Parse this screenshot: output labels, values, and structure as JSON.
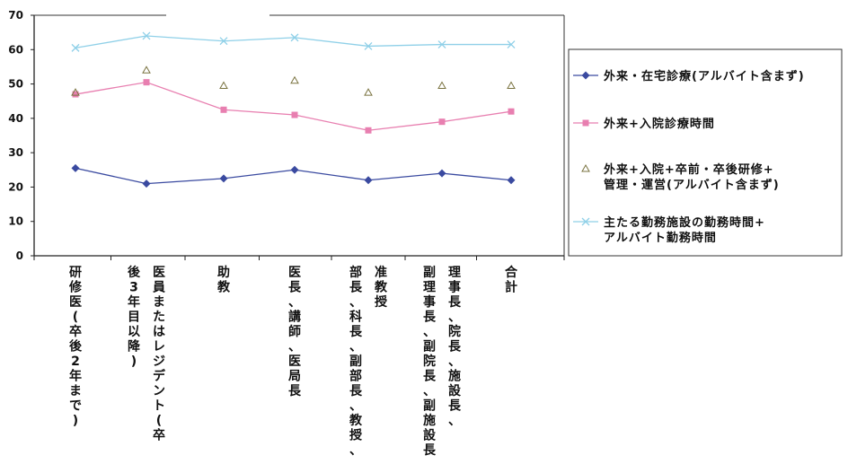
{
  "chart_data": {
    "type": "line",
    "categories": [
      [
        "研修医(卒後2年まで)"
      ],
      [
        "医員またはレジデント(卒",
        "後3年目以降)"
      ],
      [
        "助教"
      ],
      [
        "医長、講師、医局長"
      ],
      [
        "准教授",
        "部長、科長、副部長、教授、"
      ],
      [
        "理事長、院長、施設長、",
        "副理事長、副院長、副施設長"
      ],
      [
        "合計"
      ]
    ],
    "series": [
      {
        "name": "外来・在宅診療(アルバイト含まず)",
        "values": [
          25.5,
          21,
          22.5,
          25,
          22,
          24,
          22
        ],
        "color": "#3a4aa0",
        "marker": "diamond"
      },
      {
        "name": "外来+入院診療時間",
        "values": [
          47,
          50.5,
          42.5,
          41,
          36.5,
          39,
          42
        ],
        "color": "#e87fb0",
        "marker": "square"
      },
      {
        "name": "外来+入院+卒前・卒後研修+管理・運営(アルバイト含まず)",
        "values": [
          47.5,
          54,
          49.5,
          51,
          47.5,
          49.5,
          49.5
        ],
        "color": "#e6e29a",
        "marker": "triangle"
      },
      {
        "name": "主たる勤務施設の勤務時間+アルバイト勤務時間",
        "values": [
          60.5,
          64,
          62.5,
          63.5,
          61,
          61.5,
          61.5
        ],
        "color": "#8fd0e8",
        "marker": "x"
      }
    ],
    "legend_labels": [
      [
        "外来・在宅診療(アルバイト含まず)"
      ],
      [
        "外来+入院診療時間"
      ],
      [
        "外来+入院+卒前・卒後研修+",
        "管理・運営(アルバイト含まず)"
      ],
      [
        "主たる勤務施設の勤務時間+",
        "アルバイト勤務時間"
      ]
    ],
    "yticks": [
      0,
      10,
      20,
      30,
      40,
      50,
      60,
      70
    ],
    "ylim": [
      0,
      70
    ],
    "grid": false,
    "legend_position": "right",
    "title": "",
    "xlabel": "",
    "ylabel": ""
  }
}
